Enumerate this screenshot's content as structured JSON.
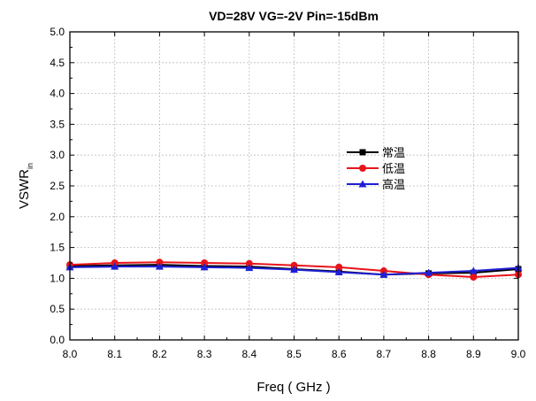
{
  "chart_data": {
    "type": "line",
    "title": "VD=28V  VG=-2V  Pin=-15dBm",
    "xlabel": "Freq ( GHz )",
    "ylabel_main": "VSWR",
    "ylabel_sub": "in",
    "xlim": [
      8.0,
      9.0
    ],
    "ylim": [
      0.0,
      5.0
    ],
    "x_ticks": [
      "8.0",
      "8.1",
      "8.2",
      "8.3",
      "8.4",
      "8.5",
      "8.6",
      "8.7",
      "8.8",
      "8.9",
      "9.0"
    ],
    "y_ticks": [
      "0.0",
      "0.5",
      "1.0",
      "1.5",
      "2.0",
      "2.5",
      "3.0",
      "3.5",
      "4.0",
      "4.5",
      "5.0"
    ],
    "grid": true,
    "legend_position": "center-right",
    "x": [
      8.0,
      8.1,
      8.2,
      8.3,
      8.4,
      8.5,
      8.6,
      8.7,
      8.8,
      8.9,
      9.0
    ],
    "series": [
      {
        "name": "常温",
        "color": "#000000",
        "marker": "square",
        "values": [
          1.2,
          1.21,
          1.22,
          1.2,
          1.19,
          1.15,
          1.11,
          1.06,
          1.08,
          1.09,
          1.15
        ]
      },
      {
        "name": "低温",
        "color": "#e8141b",
        "marker": "circle",
        "values": [
          1.22,
          1.25,
          1.26,
          1.25,
          1.24,
          1.21,
          1.18,
          1.12,
          1.06,
          1.02,
          1.06
        ]
      },
      {
        "name": "高温",
        "color": "#1f1fd6",
        "marker": "triangle",
        "values": [
          1.18,
          1.19,
          1.19,
          1.18,
          1.17,
          1.14,
          1.1,
          1.06,
          1.09,
          1.12,
          1.17
        ]
      }
    ]
  }
}
